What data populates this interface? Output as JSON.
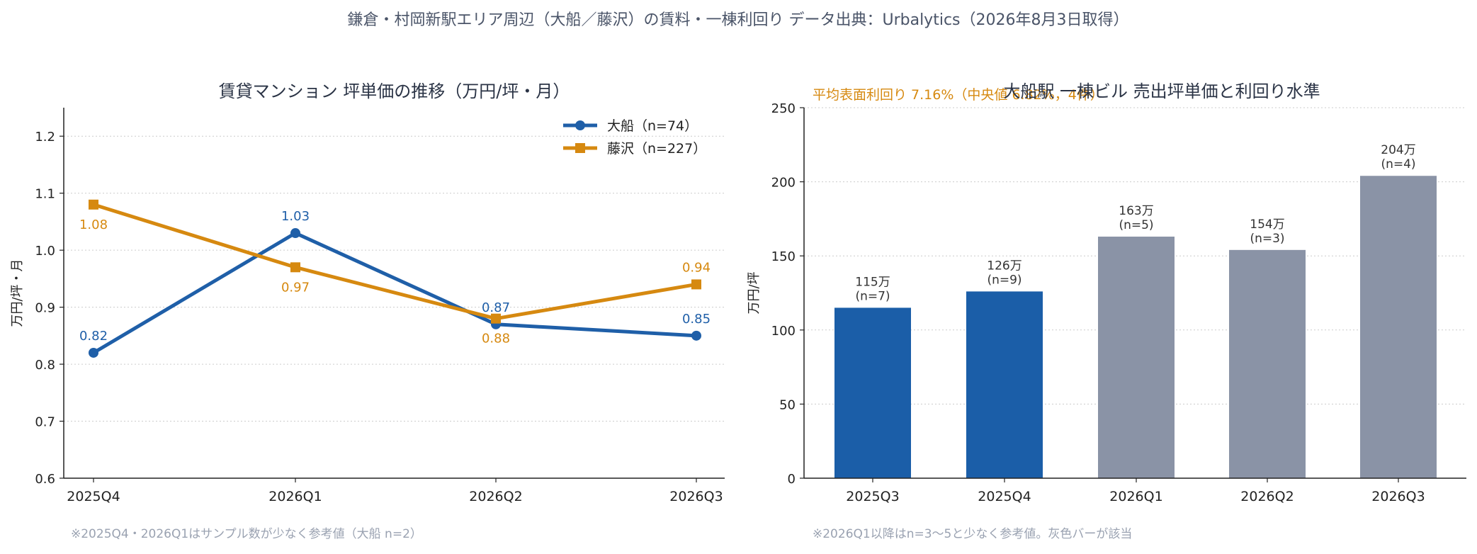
{
  "page": {
    "title": "鎌倉・村岡新駅エリア周辺（大船／藤沢）の賃料・一棟利回り データ出典：Urbalytics（2026年8月3日取得）"
  },
  "colors": {
    "ofuna": "#1f5fa8",
    "fujisawa": "#d68910",
    "bar_main": "#1b5ea8",
    "bar_ref": "#8a93a6",
    "title": "#4a5468",
    "text": "#222222",
    "note": "#9aa2b1",
    "grid": "#cccccc"
  },
  "chart_data": [
    {
      "type": "line",
      "title": "賃貸マンション 坪単価の推移（万円/坪・月）",
      "ylabel": "万円/坪・月",
      "xlabel": "",
      "categories": [
        "2025Q4",
        "2026Q1",
        "2026Q2",
        "2026Q3"
      ],
      "ylim": [
        0.6,
        1.25
      ],
      "yticks": [
        0.6,
        0.7,
        0.8,
        0.9,
        1.0,
        1.1,
        1.2
      ],
      "ytick_labels": [
        "0.6",
        "0.7",
        "0.8",
        "0.9",
        "1.0",
        "1.1",
        "1.2"
      ],
      "grid": "y-dotted",
      "legend_position": "top-right",
      "series": [
        {
          "name": "大船（n=74）",
          "marker": "circle",
          "color": "#1f5fa8",
          "values": [
            0.82,
            1.03,
            0.87,
            0.85
          ],
          "labels": [
            "0.82",
            "1.03",
            "0.87",
            "0.85"
          ],
          "label_side": [
            "above",
            "above",
            "above",
            "above"
          ]
        },
        {
          "name": "藤沢（n=227）",
          "marker": "square",
          "color": "#d68910",
          "values": [
            1.08,
            0.97,
            0.88,
            0.94
          ],
          "labels": [
            "1.08",
            "0.97",
            "0.88",
            "0.94"
          ],
          "label_side": [
            "below",
            "below",
            "below",
            "above"
          ]
        }
      ],
      "note": "※2025Q4・2026Q1はサンプル数が少なく参考値（大船 n=2）"
    },
    {
      "type": "bar",
      "title": "大船駅 一棟ビル 売出坪単価と利回り水準",
      "annotation": "平均表面利回り 7.16%（中央値 6.82%，4件）",
      "ylabel": "万円/坪",
      "xlabel": "",
      "categories": [
        "2025Q3",
        "2025Q4",
        "2026Q1",
        "2026Q2",
        "2026Q3"
      ],
      "values": [
        115,
        126,
        163,
        154,
        204
      ],
      "value_labels": [
        "115万",
        "126万",
        "163万",
        "154万",
        "204万"
      ],
      "count_labels": [
        "(n=7)",
        "(n=9)",
        "(n=5)",
        "(n=3)",
        "(n=4)"
      ],
      "reference_value": [
        false,
        false,
        true,
        true,
        true
      ],
      "ylim": [
        0,
        250
      ],
      "yticks": [
        0,
        50,
        100,
        150,
        200,
        250
      ],
      "ytick_labels": [
        "0",
        "50",
        "100",
        "150",
        "200",
        "250"
      ],
      "grid": "y-dotted",
      "note": "※2026Q1以降はn=3〜5と少なく参考値。灰色バーが該当"
    }
  ]
}
